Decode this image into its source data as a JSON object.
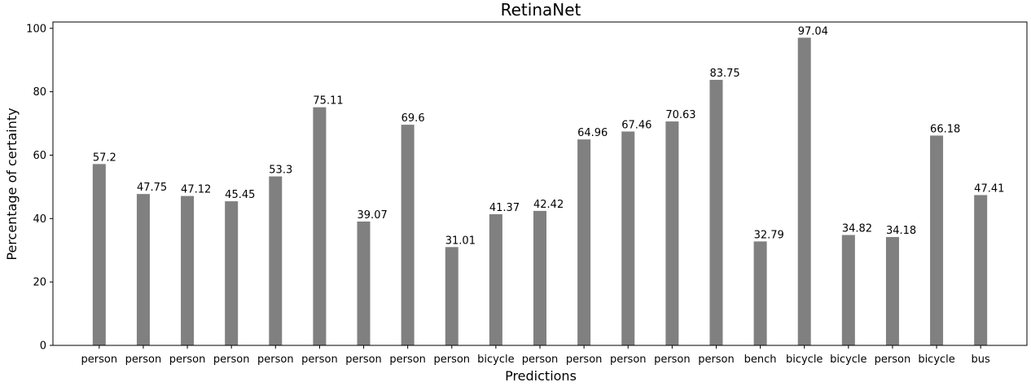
{
  "chart_data": {
    "type": "bar",
    "title": "RetinaNet",
    "xlabel": "Predictions",
    "ylabel": "Percentage of certainty",
    "ylim": [
      0,
      102
    ],
    "yticks": [
      0,
      20,
      40,
      60,
      80,
      100
    ],
    "grid": false,
    "bar_color": "#808080",
    "categories": [
      "person",
      "person",
      "person",
      "person",
      "person",
      "person",
      "person",
      "person",
      "person",
      "bicycle",
      "person",
      "person",
      "person",
      "person",
      "person",
      "bench",
      "bicycle",
      "bicycle",
      "person",
      "bicycle",
      "bus"
    ],
    "values": [
      57.2,
      47.75,
      47.12,
      45.45,
      53.3,
      75.11,
      39.07,
      69.6,
      31.01,
      41.37,
      42.42,
      64.96,
      67.46,
      70.63,
      83.75,
      32.79,
      97.04,
      34.82,
      34.18,
      66.18,
      47.41
    ],
    "data_labels": [
      "57.2",
      "47.75",
      "47.12",
      "45.45",
      "53.3",
      "75.11",
      "39.07",
      "69.6",
      "31.01",
      "41.37",
      "42.42",
      "64.96",
      "67.46",
      "70.63",
      "83.75",
      "32.79",
      "97.04",
      "34.82",
      "34.18",
      "66.18",
      "47.41"
    ]
  }
}
